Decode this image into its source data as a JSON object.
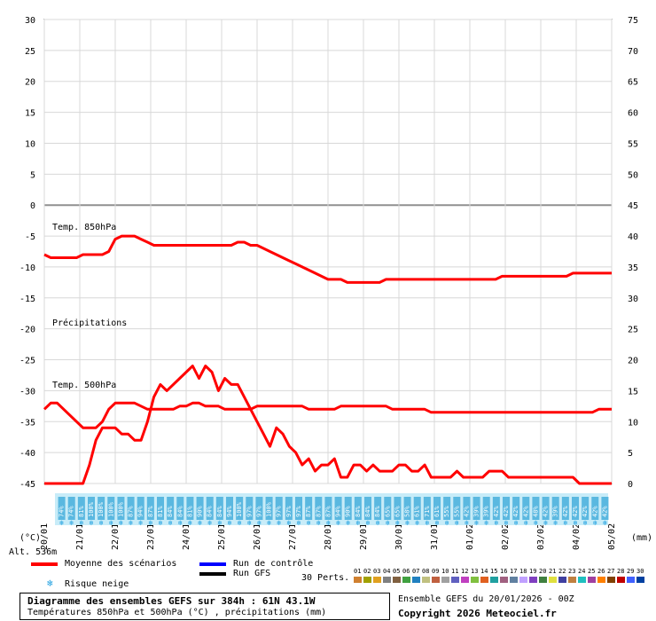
{
  "chart_data": {
    "type": "line",
    "title": "Diagramme des ensembles GEFS sur 384h : 61N 43.1W",
    "subtitle": "Températures 850hPa et 500hPa (°C) , précipitations (mm)",
    "ylabel_left": "(°C)",
    "ylabel_right": "(mm)",
    "ylim_left": [
      -45,
      30
    ],
    "ylim_right": [
      0,
      75
    ],
    "left_ticks": [
      "30",
      "25",
      "20",
      "15",
      "10",
      "5",
      "0",
      "-5",
      "-10",
      "-15",
      "-20",
      "-25",
      "-30",
      "-35",
      "-40",
      "-45"
    ],
    "right_ticks": [
      "75",
      "70",
      "65",
      "60",
      "55",
      "50",
      "45",
      "40",
      "35",
      "30",
      "25",
      "20",
      "15",
      "10",
      "5",
      "0"
    ],
    "x_ticks": [
      "20/01",
      "21/01",
      "22/01",
      "23/01",
      "24/01",
      "25/01",
      "26/01",
      "27/01",
      "28/01",
      "29/01",
      "30/01",
      "31/01",
      "01/02",
      "02/02",
      "03/02",
      "04/02",
      "05/02"
    ],
    "panel_labels": [
      "Temp. 850hPa",
      "Précipitations",
      "Temp. 500hPa"
    ],
    "snow_risk": [
      "74%",
      "74%",
      "81%",
      "100%",
      "100%",
      "100%",
      "100%",
      "87%",
      "94%",
      "87%",
      "81%",
      "84%",
      "84%",
      "81%",
      "90%",
      "84%",
      "84%",
      "94%",
      "100%",
      "97%",
      "97%",
      "100%",
      "97%",
      "97%",
      "97%",
      "87%",
      "87%",
      "87%",
      "94%",
      "90%",
      "84%",
      "84%",
      "84%",
      "65%",
      "65%",
      "58%",
      "61%",
      "71%",
      "61%",
      "55%",
      "55%",
      "42%",
      "39%",
      "39%",
      "42%",
      "42%",
      "42%",
      "42%",
      "48%",
      "42%",
      "39%",
      "42%",
      "42%",
      "42%",
      "42%",
      "42%"
    ],
    "series": [
      {
        "name": "Moyenne des scénarios",
        "panel": "t850",
        "color": "#ff0000",
        "values": [
          -8,
          -8.5,
          -8.5,
          -8.5,
          -8.5,
          -8.5,
          -8,
          -8,
          -8,
          -8,
          -7.5,
          -5.5,
          -5,
          -5,
          -5,
          -5.5,
          -6,
          -6.5,
          -6.5,
          -6.5,
          -6.5,
          -6.5,
          -6.5,
          -6.5,
          -6.5,
          -6.5,
          -6.5,
          -6.5,
          -6.5,
          -6.5,
          -6,
          -6,
          -6.5,
          -6.5,
          -7,
          -7.5,
          -8,
          -8.5,
          -9,
          -9.5,
          -10,
          -10.5,
          -11,
          -11.5,
          -12,
          -12,
          -12,
          -12.5,
          -12.5,
          -12.5,
          -12.5,
          -12.5,
          -12.5,
          -12,
          -12,
          -12,
          -12,
          -12,
          -12,
          -12,
          -12,
          -12,
          -12,
          -12,
          -12,
          -12,
          -12,
          -12,
          -12,
          -12,
          -12,
          -11.5,
          -11.5,
          -11.5,
          -11.5,
          -11.5,
          -11.5,
          -11.5,
          -11.5,
          -11.5,
          -11.5,
          -11.5,
          -11,
          -11,
          -11,
          -11,
          -11,
          -11,
          -11
        ]
      },
      {
        "name": "Moyenne des scénarios",
        "panel": "t500",
        "color": "#ff0000",
        "values": [
          -33,
          -32,
          -32,
          -33,
          -34,
          -35,
          -36,
          -36,
          -36,
          -35,
          -33,
          -32,
          -32,
          -32,
          -32,
          -32.5,
          -33,
          -33,
          -33,
          -33,
          -33,
          -32.5,
          -32.5,
          -32,
          -32,
          -32.5,
          -32.5,
          -32.5,
          -33,
          -33,
          -33,
          -33,
          -33,
          -32.5,
          -32.5,
          -32.5,
          -32.5,
          -32.5,
          -32.5,
          -32.5,
          -32.5,
          -33,
          -33,
          -33,
          -33,
          -33,
          -32.5,
          -32.5,
          -32.5,
          -32.5,
          -32.5,
          -32.5,
          -32.5,
          -32.5,
          -33,
          -33,
          -33,
          -33,
          -33,
          -33,
          -33.5,
          -33.5,
          -33.5,
          -33.5,
          -33.5,
          -33.5,
          -33.5,
          -33.5,
          -33.5,
          -33.5,
          -33.5,
          -33.5,
          -33.5,
          -33.5,
          -33.5,
          -33.5,
          -33.5,
          -33.5,
          -33.5,
          -33.5,
          -33.5,
          -33.5,
          -33.5,
          -33.5,
          -33.5,
          -33.5,
          -33,
          -33,
          -33
        ]
      },
      {
        "name": "Moyenne des scénarios",
        "panel": "precip",
        "color": "#ff0000",
        "values": [
          0,
          0,
          0,
          0,
          0,
          0,
          0,
          3,
          7,
          9,
          9,
          9,
          8,
          8,
          7,
          7,
          10,
          14,
          16,
          15,
          16,
          17,
          18,
          19,
          17,
          19,
          18,
          15,
          17,
          16,
          16,
          14,
          12,
          10,
          8,
          6,
          9,
          8,
          6,
          5,
          3,
          4,
          2,
          3,
          3,
          4,
          1,
          1,
          3,
          3,
          2,
          3,
          2,
          2,
          2,
          3,
          3,
          2,
          2,
          3,
          1,
          1,
          1,
          1,
          2,
          1,
          1,
          1,
          1,
          2,
          2,
          2,
          1,
          1,
          1,
          1,
          1,
          1,
          1,
          1,
          1,
          1,
          1,
          0,
          0,
          0,
          0,
          0,
          0
        ]
      },
      {
        "name": "Run de contrôle",
        "color": "#0000ff"
      },
      {
        "name": "Run GFS",
        "color": "#000000"
      }
    ],
    "grid": true
  },
  "legend": {
    "mean": "Moyenne des scénarios",
    "control": "Run de contrôle",
    "gfs": "Run GFS",
    "snow": "Risque neige",
    "perts": "30 Perts.",
    "pert_numbers": [
      "01",
      "02",
      "03",
      "04",
      "05",
      "06",
      "07",
      "08",
      "09",
      "10",
      "11",
      "12",
      "13",
      "14",
      "15",
      "16",
      "17",
      "18",
      "19",
      "20",
      "21",
      "22",
      "23",
      "24",
      "25",
      "26",
      "27",
      "28",
      "29",
      "30"
    ],
    "pert_colors": [
      "#d08030",
      "#a0a000",
      "#e0a020",
      "#808080",
      "#806040",
      "#40a040",
      "#2080c0",
      "#c0c080",
      "#c06040",
      "#a0a0a0",
      "#6060c0",
      "#c040c0",
      "#80c040",
      "#e06020",
      "#20a0a0",
      "#a06080",
      "#6080a0",
      "#c0a0ff",
      "#8040c0",
      "#408040",
      "#e0e040",
      "#4040a0",
      "#c08040",
      "#20c0c0",
      "#a040a0",
      "#ff8000",
      "#804000",
      "#c00000",
      "#4060ff",
      "#0040a0"
    ]
  },
  "altitude": "Alt. 536m",
  "footer": {
    "title": "Diagramme des ensembles GEFS sur 384h : 61N 43.1W",
    "subtitle": "Températures 850hPa et 500hPa (°C) , précipitations (mm)",
    "run": "Ensemble GEFS du 20/01/2026 - 00Z",
    "copyright": "Copyright 2026 Meteociel.fr"
  }
}
